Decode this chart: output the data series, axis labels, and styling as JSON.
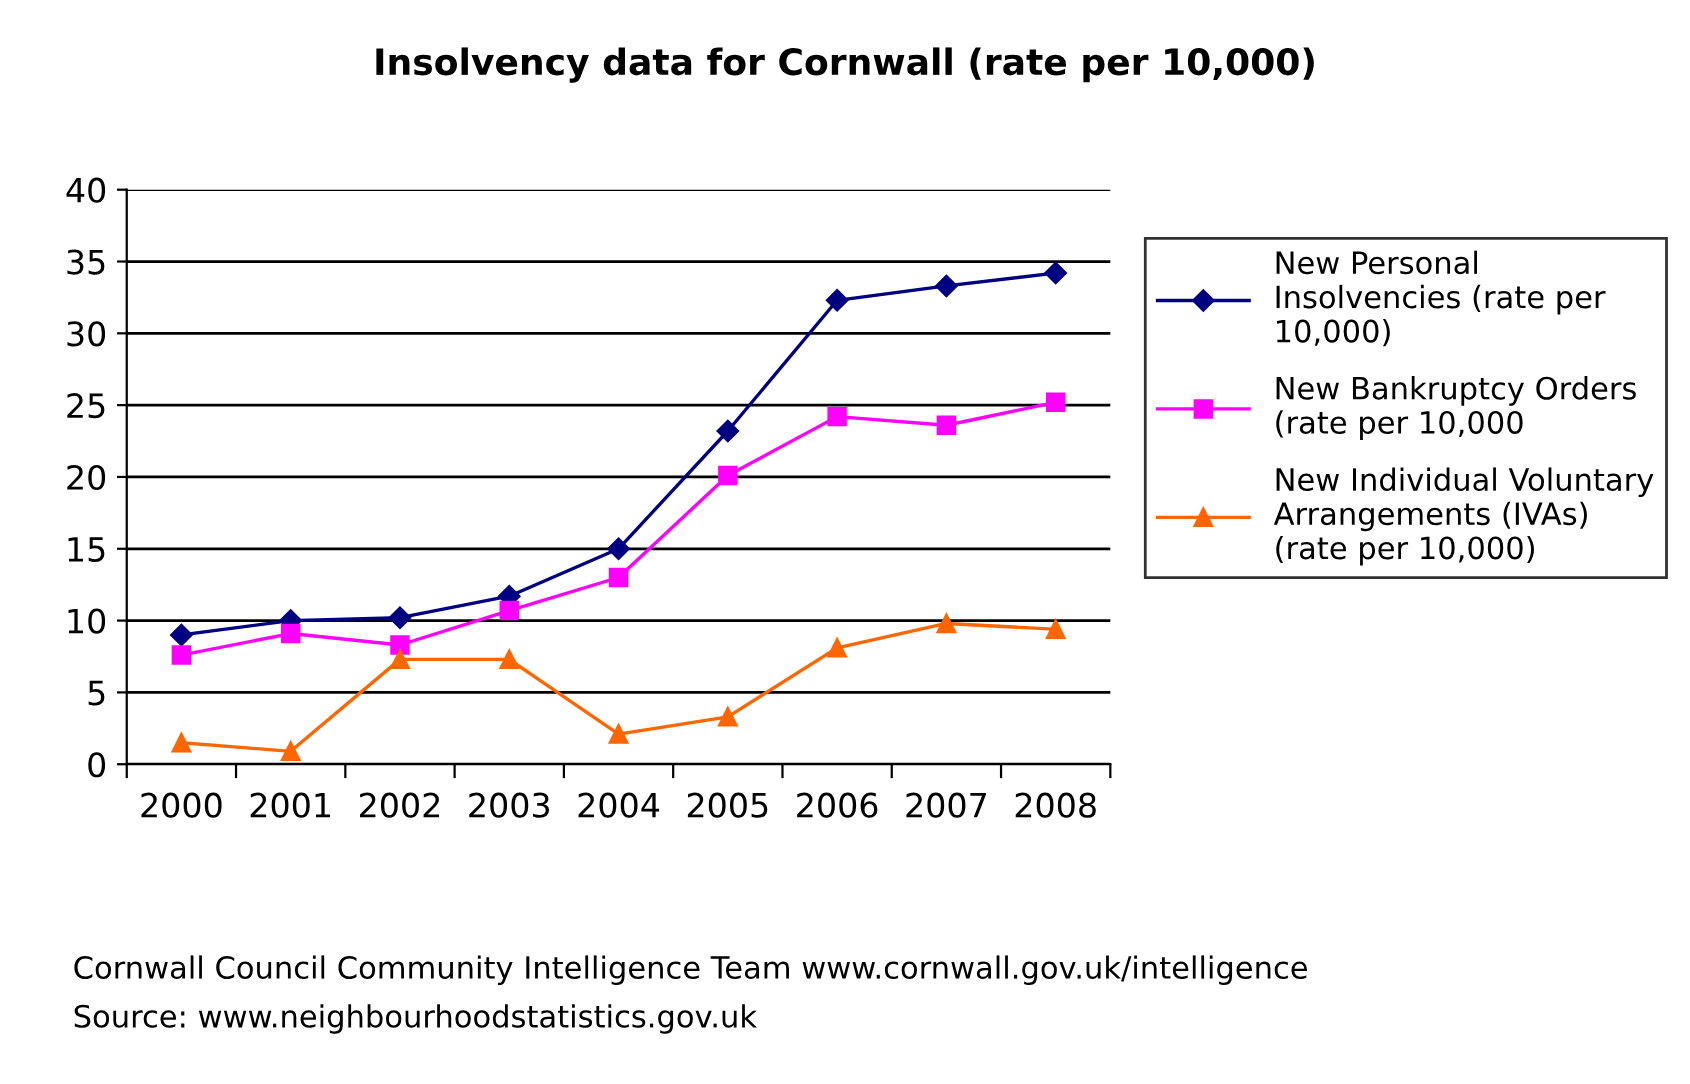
{
  "chart_data": {
    "type": "line",
    "title": "Insolvency data for Cornwall (rate per 10,000)",
    "categories": [
      "2000",
      "2001",
      "2002",
      "2003",
      "2004",
      "2005",
      "2006",
      "2007",
      "2008"
    ],
    "series": [
      {
        "name": "New Personal Insolvencies (rate per 10,000)",
        "color": "#000080",
        "marker": "diamond",
        "values": [
          9.0,
          10.0,
          10.2,
          11.7,
          15.0,
          23.2,
          32.3,
          33.3,
          34.2
        ]
      },
      {
        "name": "New Bankruptcy Orders (rate per 10,000",
        "color": "#ff00ff",
        "marker": "square",
        "values": [
          7.6,
          9.1,
          8.3,
          10.7,
          13.0,
          20.1,
          24.2,
          23.6,
          25.2
        ]
      },
      {
        "name": "New Individual Voluntary Arrangements (IVAs) (rate per 10,000)",
        "color": "#ff6600",
        "marker": "triangle",
        "values": [
          1.5,
          0.9,
          7.3,
          7.3,
          2.1,
          3.3,
          8.1,
          9.8,
          9.4
        ]
      }
    ],
    "ylim": [
      0,
      40
    ],
    "yticks": [
      0,
      5,
      10,
      15,
      20,
      25,
      30,
      35,
      40
    ],
    "grid": "y",
    "legend": "right",
    "line_style": "solid",
    "annotations": [
      "Cornwall Council Community Intelligence Team www.cornwall.gov.uk/intelligence",
      "Source: www.neighbourhoodstatistics.gov.uk"
    ]
  }
}
